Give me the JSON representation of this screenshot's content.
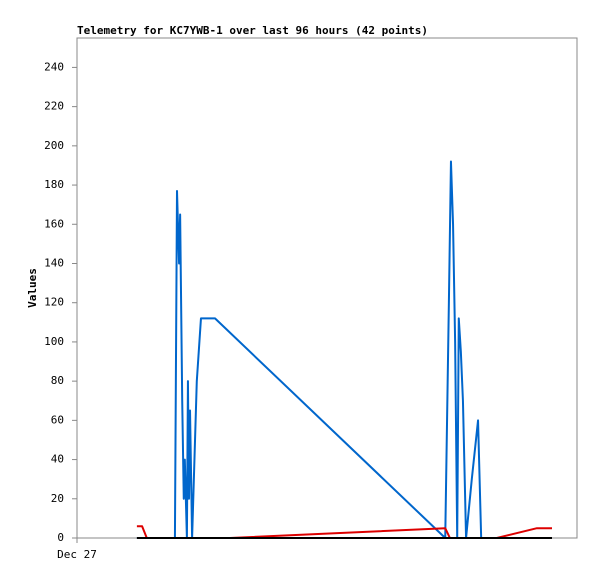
{
  "chart_data": {
    "type": "line",
    "title": "Telemetry for KC7YWB-1 over last 96 hours (42 points)",
    "y_label": "Values",
    "xlim": [
      0,
      96
    ],
    "xticks": [
      {
        "value": 0,
        "label": "Dec 27"
      }
    ],
    "ylim": [
      0,
      255
    ],
    "yticks": [
      0,
      20,
      40,
      60,
      80,
      100,
      120,
      140,
      160,
      180,
      200,
      220,
      240
    ],
    "grid": false,
    "series": [
      {
        "color": "#0066cc",
        "x": [
          11.5,
          18.8,
          19.2,
          19.6,
          19.8,
          20.2,
          20.5,
          20.7,
          21.1,
          21.3,
          21.5,
          21.7,
          22.1,
          23.0,
          23.8,
          26.5,
          70.7,
          71.4,
          71.8,
          72.2,
          72.6,
          73.0,
          73.3,
          73.7,
          74.1,
          74.7,
          75.8,
          77.0,
          77.2,
          77.6,
          91.2
        ],
        "values": [
          0,
          0,
          177,
          140,
          165,
          70,
          20,
          40,
          0,
          80,
          20,
          65,
          0,
          80,
          112,
          112,
          0,
          120,
          192,
          160,
          100,
          0,
          112,
          95,
          70,
          0,
          30,
          60,
          40,
          0,
          0
        ]
      },
      {
        "color": "#dd0000",
        "x": [
          11.5,
          12.5,
          13.4,
          29.4,
          70.7,
          71.6,
          80.6,
          88.3,
          91.2
        ],
        "values": [
          6,
          6,
          0,
          0,
          5,
          0,
          0,
          5,
          5
        ]
      },
      {
        "color": "#000000",
        "x": [
          11.5,
          91.2
        ],
        "values": [
          0,
          0
        ]
      }
    ]
  }
}
